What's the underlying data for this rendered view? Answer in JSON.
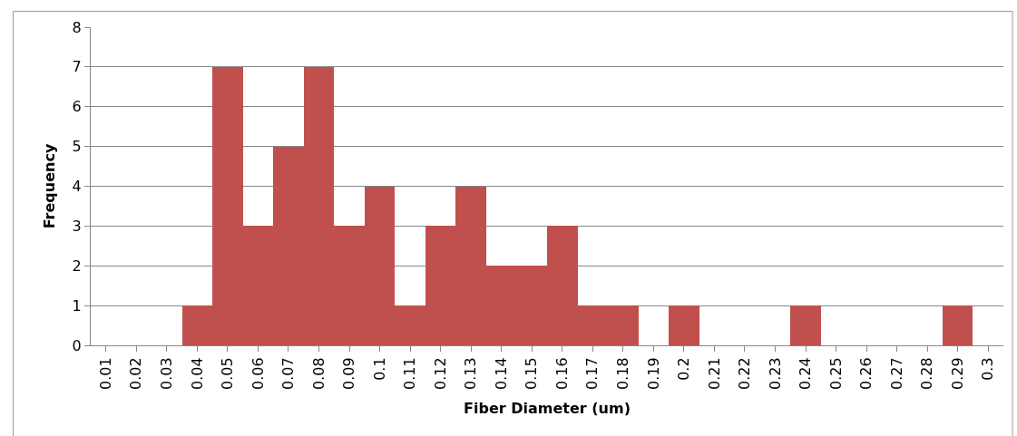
{
  "chart_data": {
    "type": "bar",
    "xlabel": "Fiber Diameter (um)",
    "ylabel": "Frequency",
    "categories": [
      "0.01",
      "0.02",
      "0.03",
      "0.04",
      "0.05",
      "0.06",
      "0.07",
      "0.08",
      "0.09",
      "0.1",
      "0.11",
      "0.12",
      "0.13",
      "0.14",
      "0.15",
      "0.16",
      "0.17",
      "0.18",
      "0.19",
      "0.2",
      "0.21",
      "0.22",
      "0.23",
      "0.24",
      "0.25",
      "0.26",
      "0.27",
      "0.28",
      "0.29",
      "0.3"
    ],
    "values": [
      0,
      0,
      0,
      1,
      7,
      3,
      5,
      7,
      3,
      4,
      1,
      3,
      4,
      2,
      2,
      3,
      1,
      1,
      0,
      1,
      0,
      0,
      0,
      1,
      0,
      0,
      0,
      0,
      1,
      0
    ],
    "color": "#c0504d",
    "ylim": [
      0,
      8
    ],
    "yticks": [
      0,
      1,
      2,
      3,
      4,
      5,
      6,
      7,
      8
    ],
    "grid": "y",
    "legend": false
  }
}
